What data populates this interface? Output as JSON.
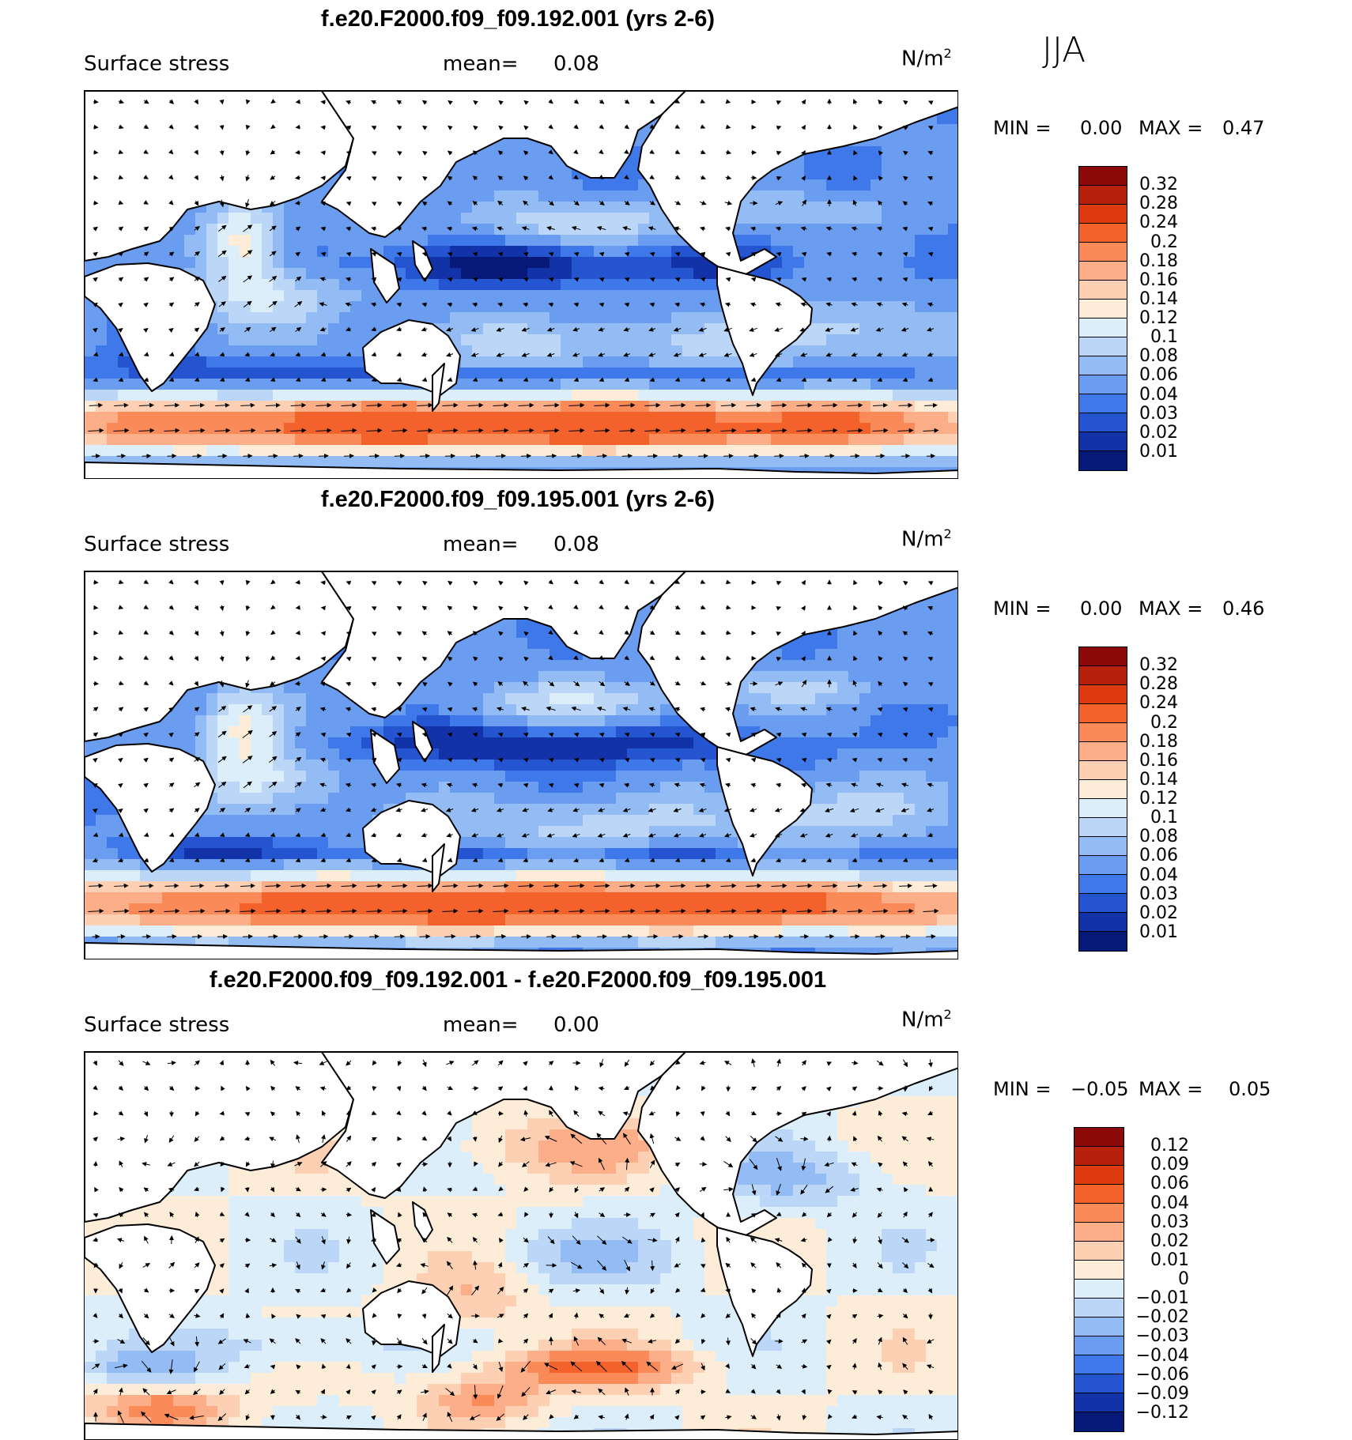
{
  "season": "JJA",
  "panels": [
    {
      "title": "f.e20.F2000.f09_f09.192.001 (yrs 2-6)",
      "field": "Surface stress",
      "mean_label": "mean=",
      "mean": "0.08",
      "units_base": "N/m",
      "units_exp": "2",
      "min_label": "MIN =",
      "min": "0.00",
      "max_label": "MAX =",
      "max": "0.47",
      "kind": "abs"
    },
    {
      "title": "f.e20.F2000.f09_f09.195.001 (yrs 2-6)",
      "field": "Surface stress",
      "mean_label": "mean=",
      "mean": "0.08",
      "units_base": "N/m",
      "units_exp": "2",
      "min_label": "MIN =",
      "min": "0.00",
      "max_label": "MAX =",
      "max": "0.46",
      "kind": "abs"
    },
    {
      "title": "f.e20.F2000.f09_f09.192.001 - f.e20.F2000.f09_f09.195.001",
      "field": "Surface stress",
      "mean_label": "mean=",
      "mean": "0.00",
      "units_base": "N/m",
      "units_exp": "2",
      "min_label": "MIN =",
      "min": "−0.05",
      "max_label": "MAX =",
      "max": "0.05",
      "kind": "diff"
    }
  ],
  "colorbars": {
    "abs": {
      "labels": [
        "0.32",
        "0.28",
        "0.24",
        "0.2",
        "0.18",
        "0.16",
        "0.14",
        "0.12",
        "0.1",
        "0.08",
        "0.06",
        "0.04",
        "0.03",
        "0.02",
        "0.01"
      ],
      "colors": [
        "#8c0a0a",
        "#b8200e",
        "#de3a10",
        "#f2622a",
        "#fa8a58",
        "#fcae88",
        "#fdd0b4",
        "#fdecd8",
        "#dceefa",
        "#bcd6f8",
        "#94bcf4",
        "#6a9cf0",
        "#3f78e8",
        "#2454d0",
        "#1232a8",
        "#061878"
      ]
    },
    "diff": {
      "labels": [
        "0.12",
        "0.09",
        "0.06",
        "0.04",
        "0.03",
        "0.02",
        "0.01",
        "0",
        "−0.01",
        "−0.02",
        "−0.03",
        "−0.04",
        "−0.06",
        "−0.09",
        "−0.12"
      ],
      "colors": [
        "#8c0a0a",
        "#b8200e",
        "#de3a10",
        "#f2622a",
        "#fa8a58",
        "#fcae88",
        "#fdd0b4",
        "#fdecd8",
        "#dceefa",
        "#bcd6f8",
        "#94bcf4",
        "#6a9cf0",
        "#3f78e8",
        "#2454d0",
        "#1232a8",
        "#061878"
      ]
    }
  }
}
